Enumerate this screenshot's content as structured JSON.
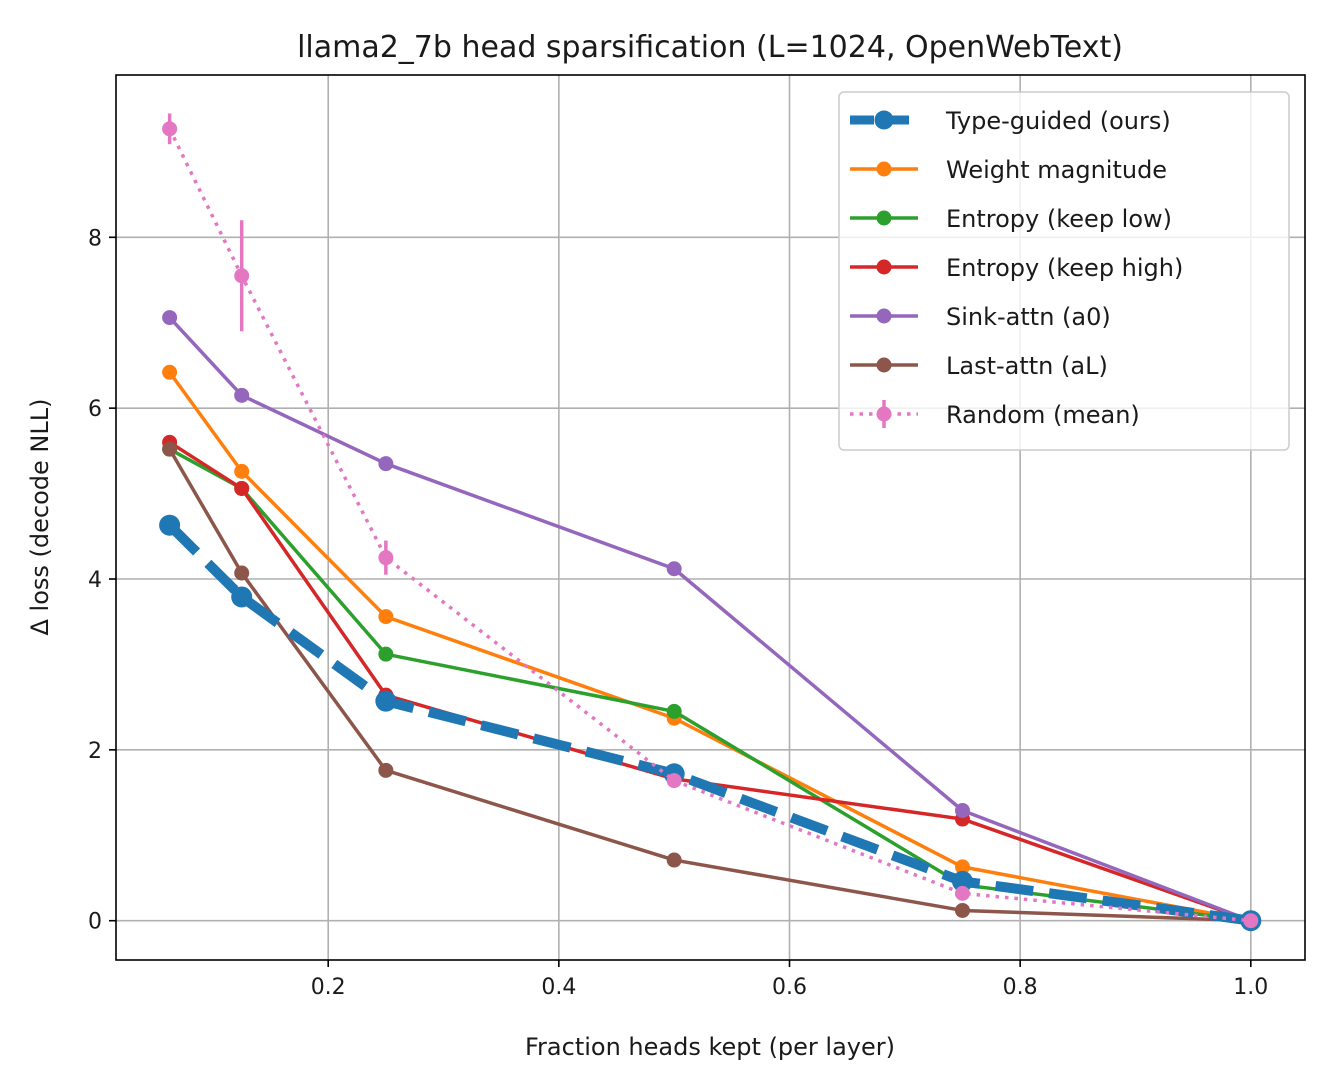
{
  "chart_data": {
    "type": "line",
    "title": "llama2_7b head sparsification (L=1024, OpenWebText)",
    "xlabel": "Fraction heads kept (per layer)",
    "ylabel": "Δ loss (decode NLL)",
    "xlim": [
      0.016,
      1.047
    ],
    "ylim": [
      -0.46,
      9.9
    ],
    "xticks": [
      0.2,
      0.4,
      0.6,
      0.8,
      1.0
    ],
    "xtick_labels": [
      "0.2",
      "0.4",
      "0.6",
      "0.8",
      "1.0"
    ],
    "yticks": [
      0,
      2,
      4,
      6,
      8
    ],
    "ytick_labels": [
      "0",
      "2",
      "4",
      "6",
      "8"
    ],
    "grid": true,
    "legend_position": "top-right",
    "x": [
      0.0625,
      0.125,
      0.25,
      0.5,
      0.75,
      1.0
    ],
    "series": [
      {
        "name": "Type-guided (ours)",
        "color": "#1f77b4",
        "style": "dashed-thick",
        "values": [
          4.63,
          3.79,
          2.57,
          1.72,
          0.46,
          0.0
        ]
      },
      {
        "name": "Weight magnitude",
        "color": "#ff7f0e",
        "style": "solid",
        "values": [
          6.42,
          5.26,
          3.56,
          2.37,
          0.63,
          0.0
        ]
      },
      {
        "name": "Entropy (keep low)",
        "color": "#2ca02c",
        "style": "solid",
        "values": [
          5.52,
          5.06,
          3.12,
          2.45,
          0.42,
          0.0
        ]
      },
      {
        "name": "Entropy (keep high)",
        "color": "#d62728",
        "style": "solid",
        "values": [
          5.6,
          5.06,
          2.64,
          1.66,
          1.19,
          0.0
        ]
      },
      {
        "name": "Sink-attn (a0)",
        "color": "#9467bd",
        "style": "solid",
        "values": [
          7.06,
          6.15,
          5.35,
          4.12,
          1.29,
          0.0
        ]
      },
      {
        "name": "Last-attn (aL)",
        "color": "#8c564b",
        "style": "solid",
        "values": [
          5.52,
          4.07,
          1.76,
          0.71,
          0.12,
          0.0
        ]
      },
      {
        "name": "Random (mean)",
        "color": "#e377c2",
        "style": "dotted-errorbar",
        "values": [
          9.27,
          7.55,
          4.25,
          1.64,
          0.32,
          0.0
        ],
        "errors": [
          0.18,
          0.65,
          0.2,
          0.08,
          0.06,
          0.0
        ]
      }
    ]
  }
}
